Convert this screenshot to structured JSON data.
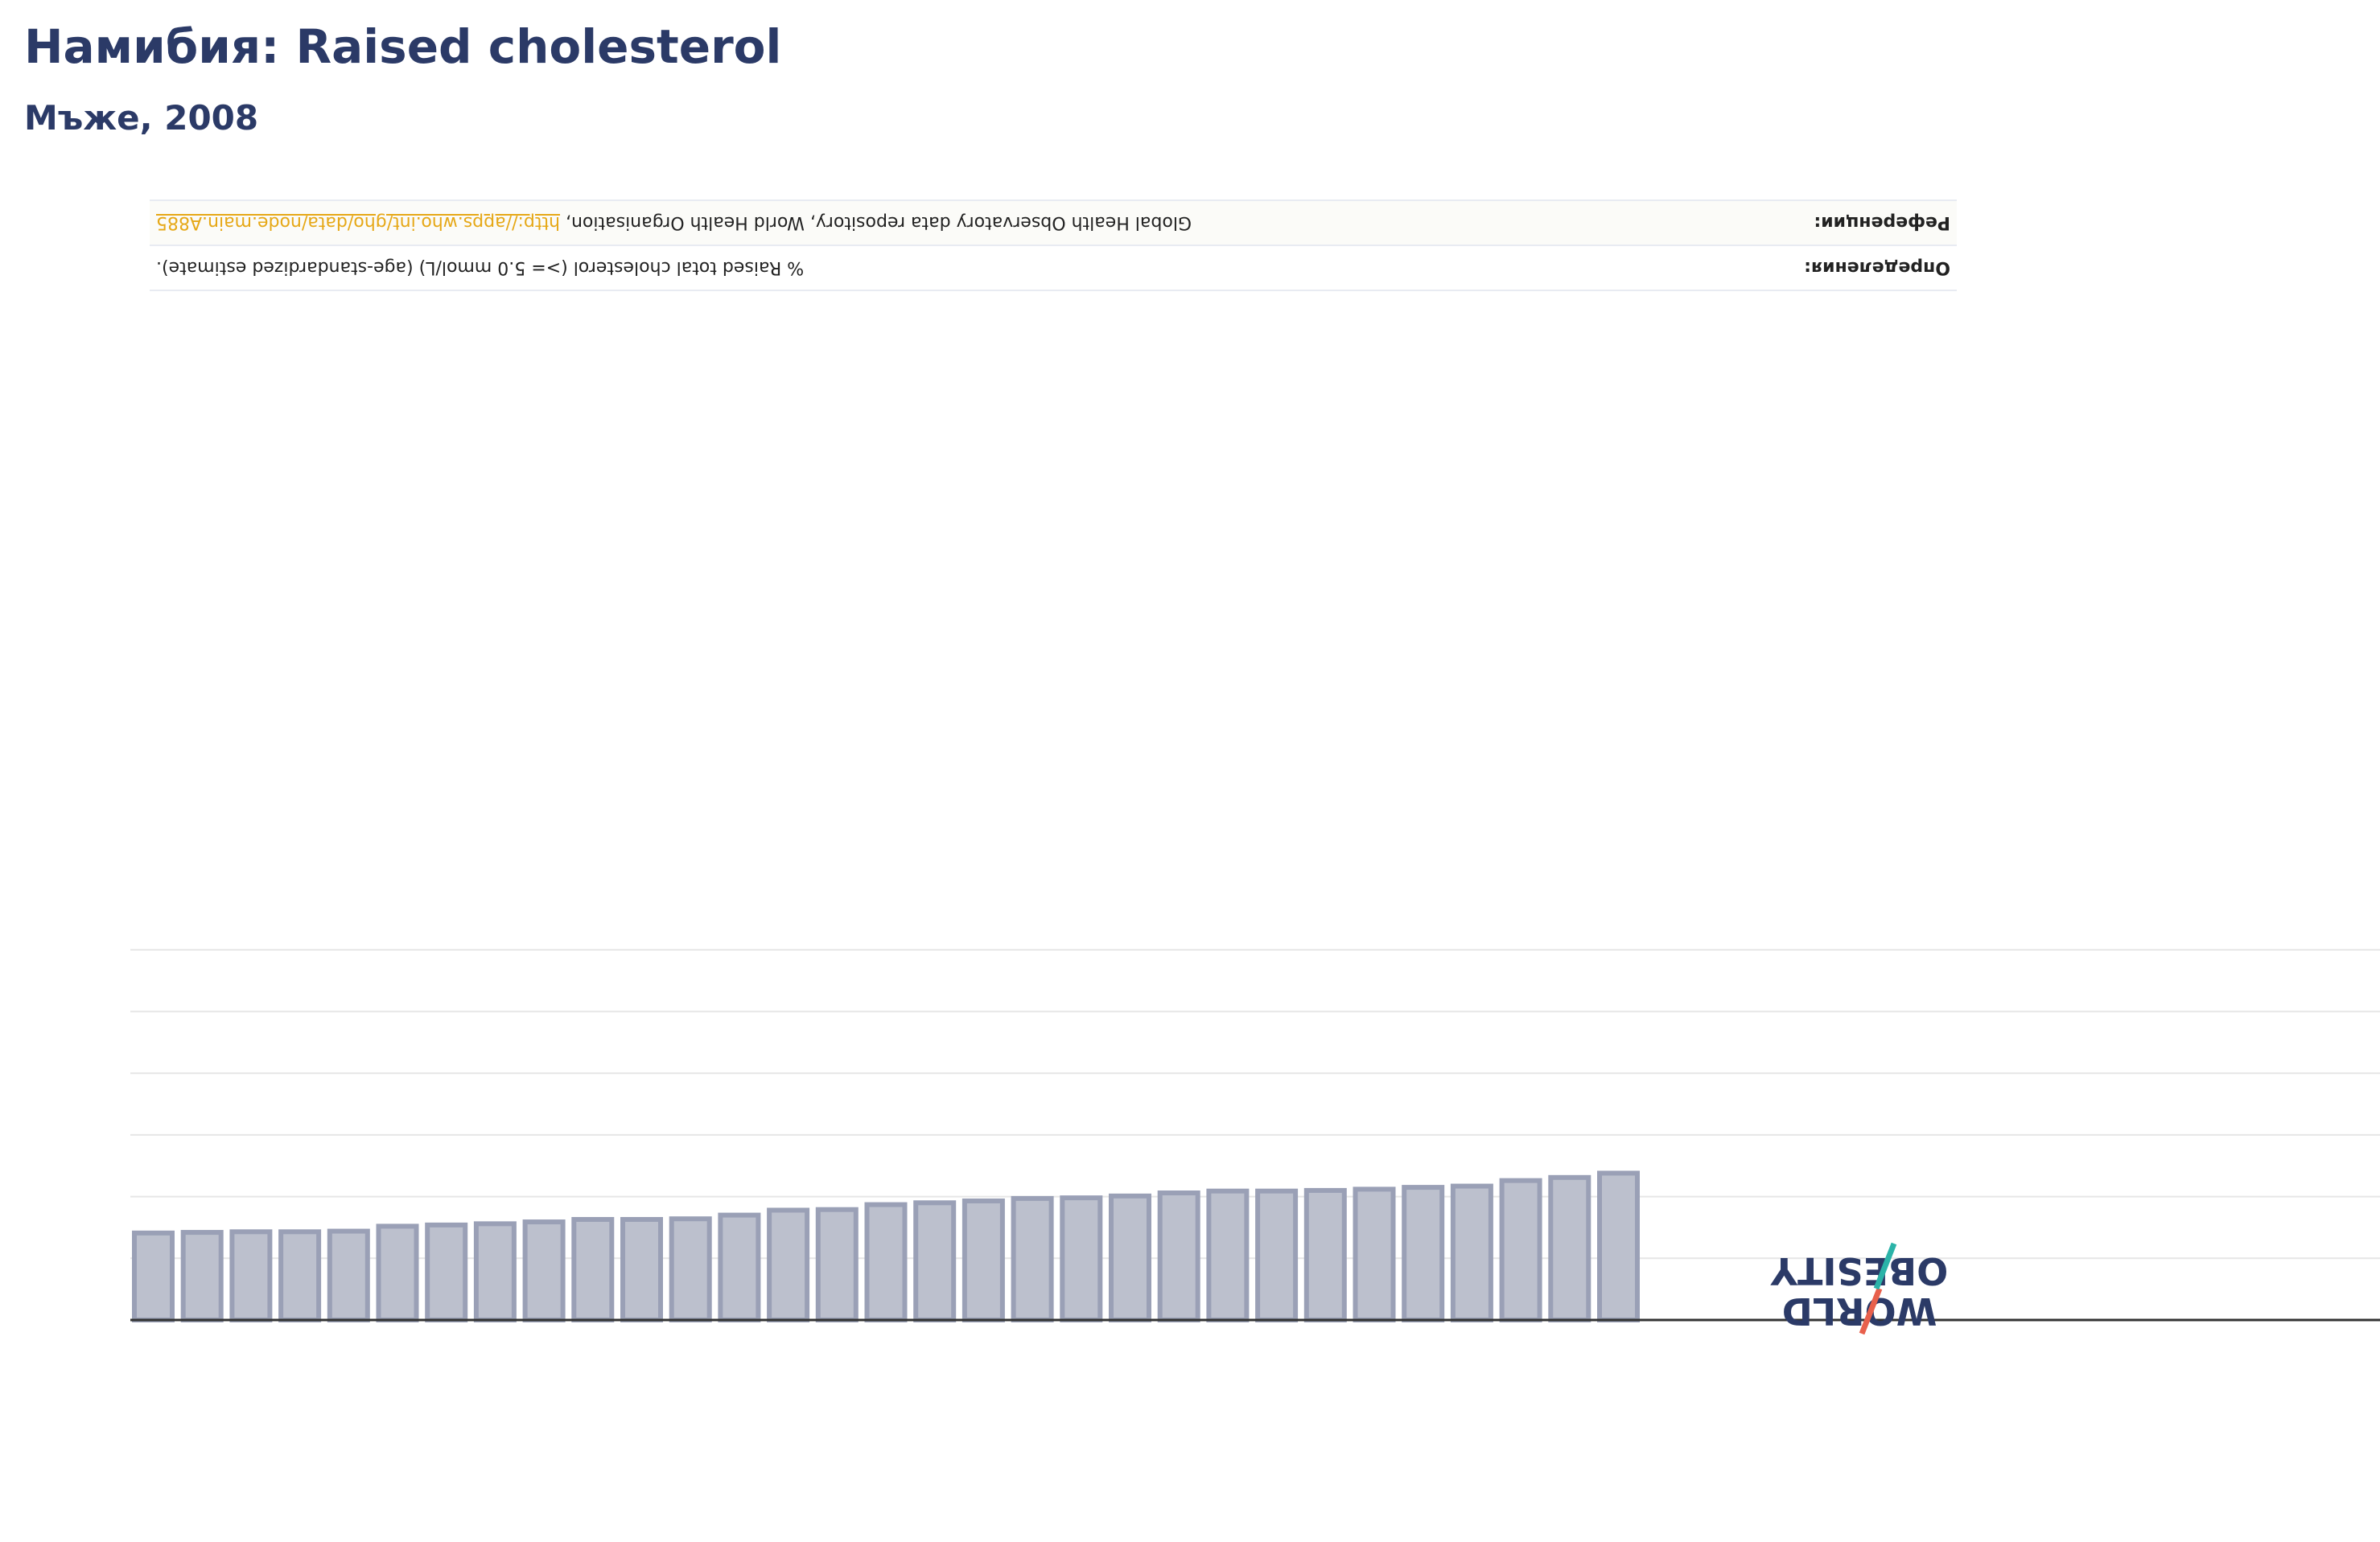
{
  "title": "Намибия: Raised cholesterol",
  "subtitle": "Мъже, 2008",
  "info": {
    "definition_label": "Определения:",
    "definition_text": "% Raised total cholesterol (>= 5.0 mmol/L) (age-standardized estimate).",
    "reference_label": "Референции:",
    "reference_text": "Global Health Observatory data repository, World Health Organisation,",
    "reference_link": "http://apps.who.int/gho/data/node.main.A885"
  },
  "logo": {
    "line1": "OBESITY",
    "line2": "WORLD"
  },
  "colors": {
    "title": "#2b3a67",
    "bar_fill": "#bcc0cd",
    "bar_stroke": "#9aa0b6",
    "grid": "#e6e6e6",
    "axis": "#333333",
    "link": "#e6a817",
    "logo_red": "#e8604c",
    "logo_teal": "#2bb3a8"
  },
  "chart_data": {
    "type": "bar",
    "title": "Намибия: Raised cholesterol",
    "subtitle": "Мъже, 2008",
    "orientation": "upside-down",
    "ylim": [
      0,
      60
    ],
    "grid": true,
    "values": [
      14.1,
      14.2,
      14.3,
      14.3,
      14.4,
      15.2,
      15.4,
      15.6,
      15.9,
      16.3,
      16.3,
      16.4,
      17.0,
      17.8,
      17.9,
      18.7,
      19.0,
      19.3,
      19.7,
      19.8,
      20.1,
      20.6,
      20.9,
      20.9,
      21.0,
      21.2,
      21.5,
      21.7,
      22.6,
      23.1,
      23.8
    ]
  }
}
